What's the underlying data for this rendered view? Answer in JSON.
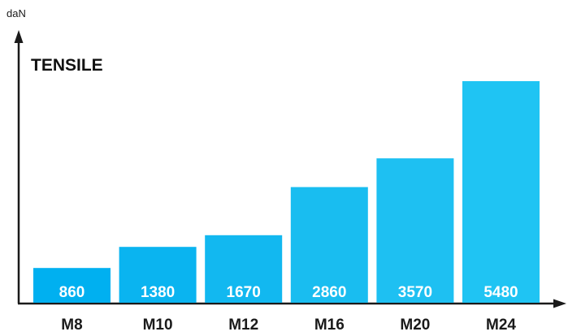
{
  "chart_data": {
    "type": "bar",
    "title": "TENSILE",
    "ylabel": "daN",
    "categories": [
      "M8",
      "M10",
      "M12",
      "M16",
      "M20",
      "M24"
    ],
    "values": [
      860,
      1380,
      1670,
      2860,
      3570,
      5480
    ],
    "value_labels": [
      "860",
      "1380",
      "1670",
      "2860",
      "3570",
      "5480"
    ],
    "colors": [
      "#00b0f0",
      "#0ab4f0",
      "#12b8f0",
      "#19bdf0",
      "#1ec0f2",
      "#1fc4f3"
    ],
    "axis_color": "#1a1a1a",
    "grid": false
  }
}
